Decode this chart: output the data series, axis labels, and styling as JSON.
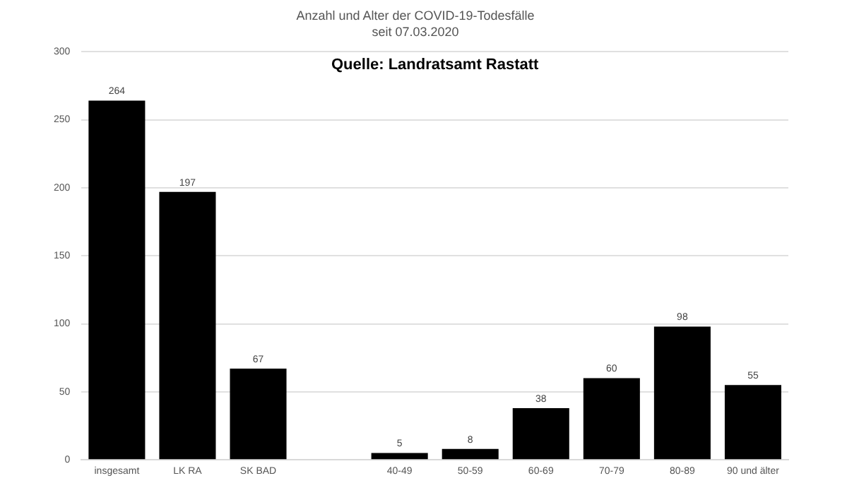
{
  "chart_data": {
    "type": "bar",
    "title": "Anzahl und Alter der COVID-19-Todesfälle",
    "subtitle": "seit 07.03.2020",
    "categories": [
      "insgesamt",
      "LK RA",
      "SK BAD",
      null,
      "40-49",
      "50-59",
      "60-69",
      "70-79",
      "80-89",
      "90 und älter"
    ],
    "values": [
      264,
      197,
      67,
      null,
      5,
      8,
      38,
      60,
      98,
      55
    ],
    "color": "#000000",
    "ylim": [
      0,
      300
    ],
    "yticks": [
      0,
      50,
      100,
      150,
      200,
      250,
      300
    ],
    "grid": "y",
    "data_labels": true,
    "legend": false,
    "annotations": [
      "Quelle: Landratsamt Rastatt"
    ]
  }
}
